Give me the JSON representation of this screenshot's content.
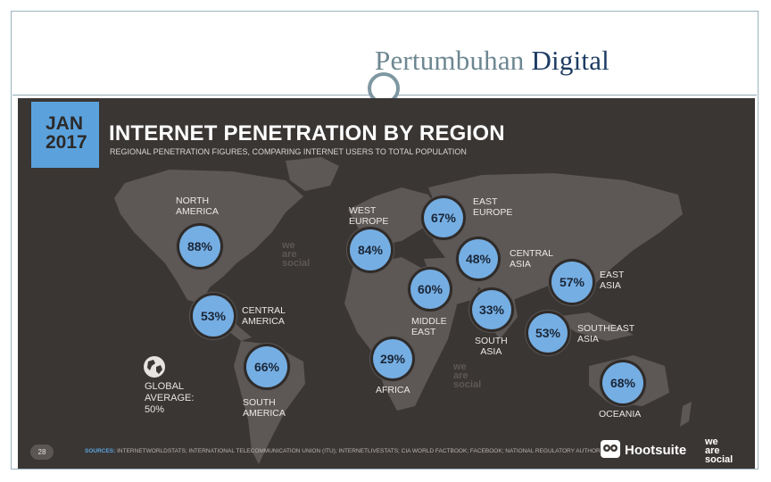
{
  "slide_title": {
    "part1": "Pertumbuhan ",
    "part2": "Digital"
  },
  "infographic": {
    "date_badge": "JAN\n2017",
    "headline": "INTERNET PENETRATION BY REGION",
    "subheadline": "REGIONAL PENETRATION FIGURES, COMPARING INTERNET USERS TO TOTAL POPULATION",
    "regions": [
      {
        "name": "NORTH\nAMERICA",
        "value": "88%"
      },
      {
        "name": "CENTRAL\nAMERICA",
        "value": "53%"
      },
      {
        "name": "SOUTH\nAMERICA",
        "value": "66%"
      },
      {
        "name": "WEST\nEUROPE",
        "value": "84%"
      },
      {
        "name": "EAST\nEUROPE",
        "value": "67%"
      },
      {
        "name": "CENTRAL\nASIA",
        "value": "48%"
      },
      {
        "name": "MIDDLE\nEAST",
        "value": "60%"
      },
      {
        "name": "SOUTH\nASIA",
        "value": "33%"
      },
      {
        "name": "EAST\nASIA",
        "value": "57%"
      },
      {
        "name": "SOUTHEAST\nASIA",
        "value": "53%"
      },
      {
        "name": "AFRICA",
        "value": "29%"
      },
      {
        "name": "OCEANIA",
        "value": "68%"
      }
    ],
    "global_average": "GLOBAL\nAVERAGE:\n50%",
    "watermark_text": "we\nare\nsocial",
    "page_number": "28",
    "sources_label": "SOURCES:",
    "sources_text": "INTERNETWORLDSTATS; INTERNATIONAL TELECOMMUNICATION UNION (ITU); INTERNETLIVESTATS; CIA WORLD FACTBOOK; FACEBOOK; NATIONAL REGULATORY AUTHORITIES.",
    "brand_hootsuite": "Hootsuite",
    "brand_wearesocial": "we\nare\nsocial"
  },
  "colors": {
    "background": "#3a3634",
    "map": "#5d5855",
    "bubble": "#75aee3",
    "accent": "#5ba2dd"
  },
  "icons": [
    "globe-icon",
    "owl-icon"
  ]
}
